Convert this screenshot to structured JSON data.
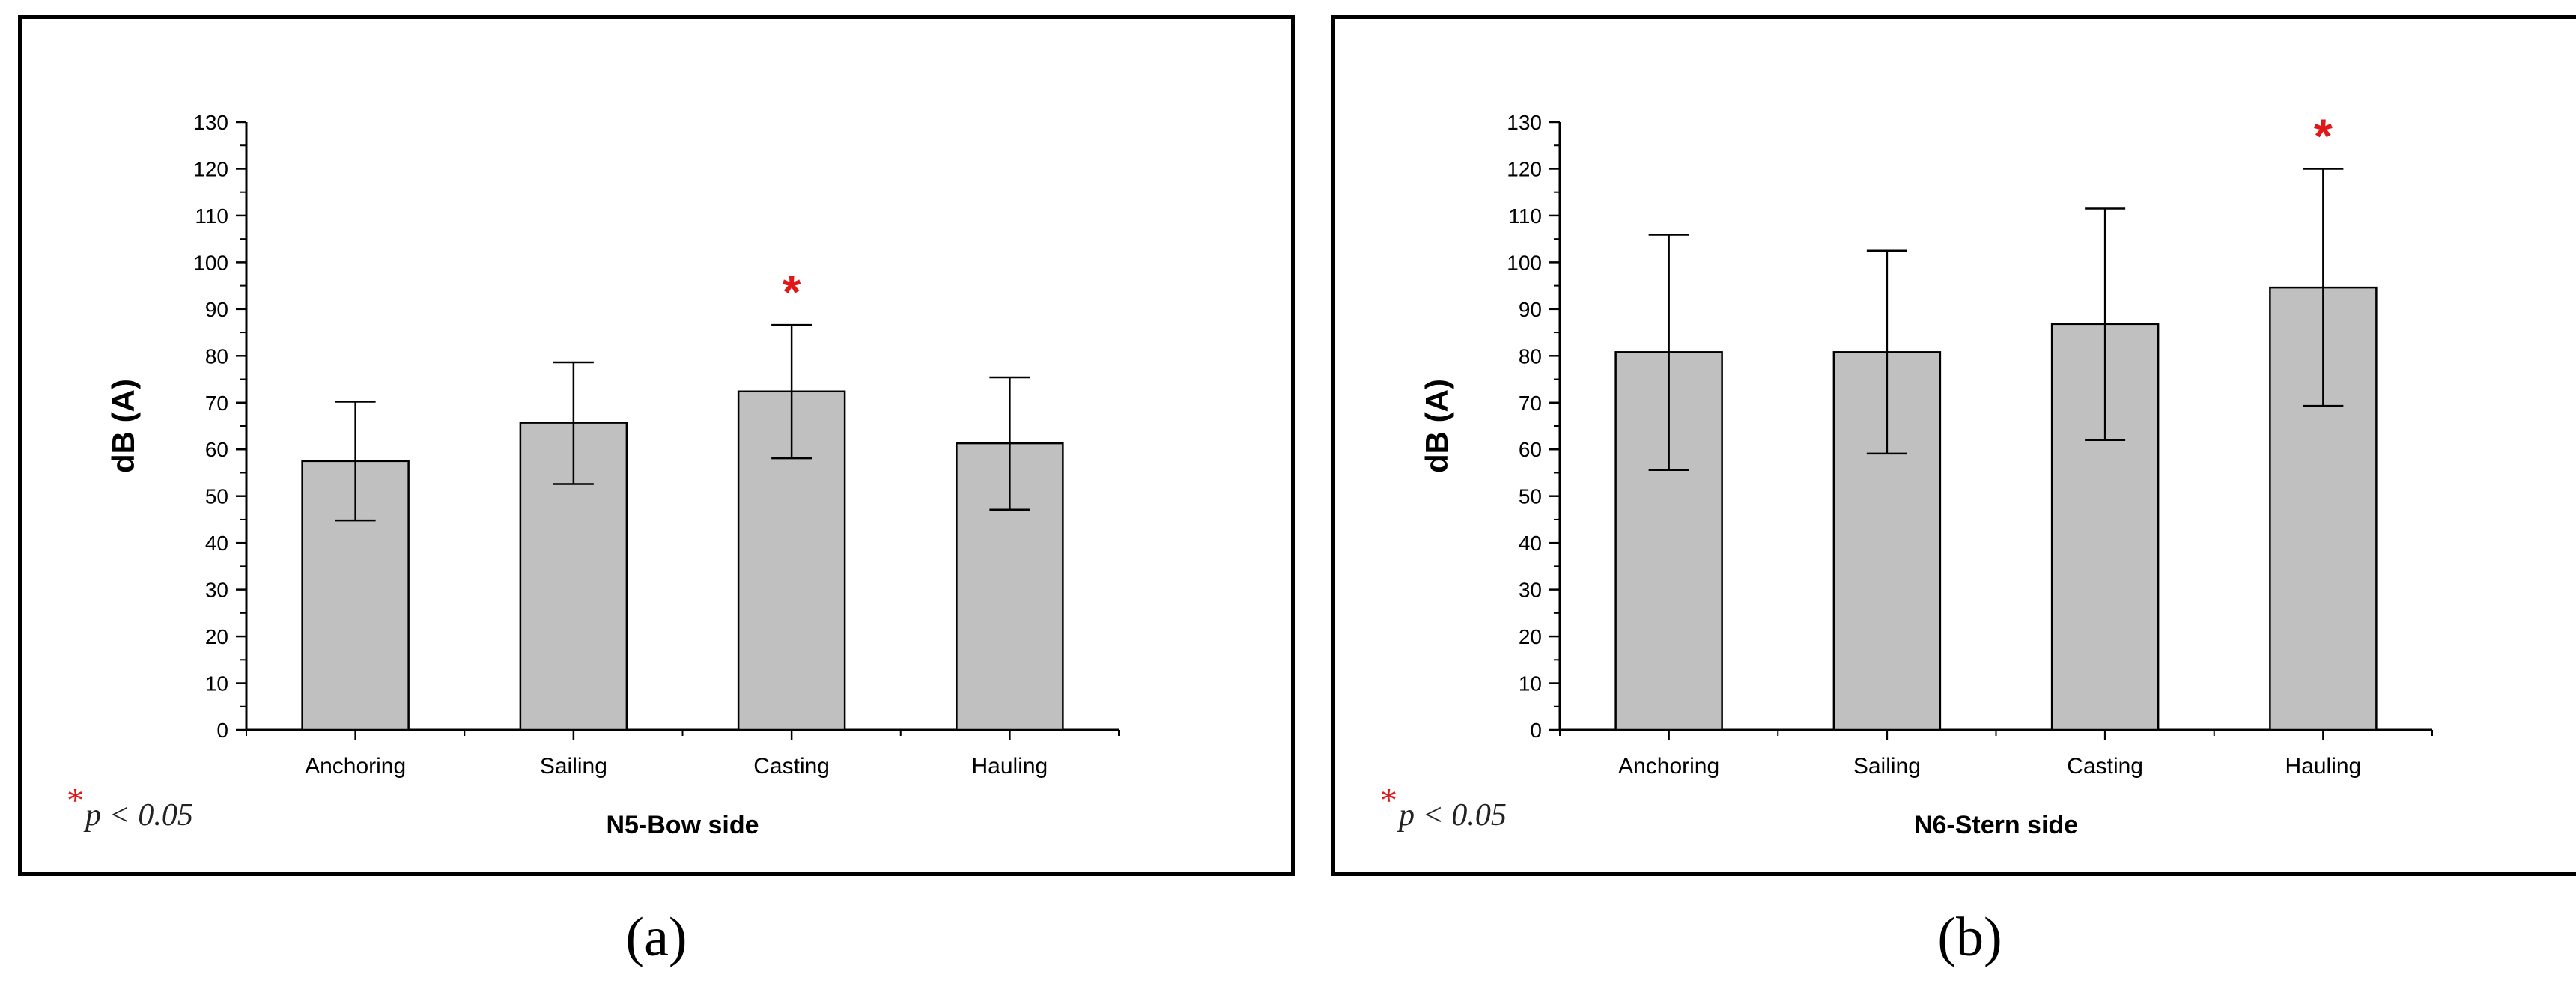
{
  "captions": [
    "(a)",
    "(b)"
  ],
  "significance_note": {
    "symbol": "*",
    "text": "p < 0.05"
  },
  "colors": {
    "bar_fill": "#c0c0c0",
    "bar_stroke": "#000000",
    "sig_marker": "#e01818",
    "axis": "#000000"
  },
  "chart_data": [
    {
      "type": "bar",
      "title": "N5-Bow side",
      "xlabel": "N5-Bow side",
      "ylabel": "dB (A)",
      "categories": [
        "Anchoring",
        "Sailing",
        "Casting",
        "Hauling"
      ],
      "values": [
        57.5,
        65.7,
        72.4,
        61.3
      ],
      "error_low": [
        44.8,
        52.6,
        58.1,
        47.1
      ],
      "error_high": [
        70.2,
        78.6,
        86.6,
        75.4
      ],
      "significant": [
        false,
        false,
        true,
        false
      ],
      "ylim": [
        0,
        130
      ],
      "yticks": [
        0,
        10,
        20,
        30,
        40,
        50,
        60,
        70,
        80,
        90,
        100,
        110,
        120,
        130
      ],
      "sig_marker": "*"
    },
    {
      "type": "bar",
      "title": "N6-Stern side",
      "xlabel": "N6-Stern side",
      "ylabel": "dB (A)",
      "categories": [
        "Anchoring",
        "Sailing",
        "Casting",
        "Hauling"
      ],
      "values": [
        80.8,
        80.8,
        86.8,
        94.6
      ],
      "error_low": [
        55.6,
        59.1,
        62.0,
        69.3
      ],
      "error_high": [
        105.9,
        102.5,
        111.5,
        120.0
      ],
      "significant": [
        false,
        false,
        false,
        true
      ],
      "ylim": [
        0,
        130
      ],
      "yticks": [
        0,
        10,
        20,
        30,
        40,
        50,
        60,
        70,
        80,
        90,
        100,
        110,
        120,
        130
      ],
      "sig_marker": "*"
    }
  ]
}
